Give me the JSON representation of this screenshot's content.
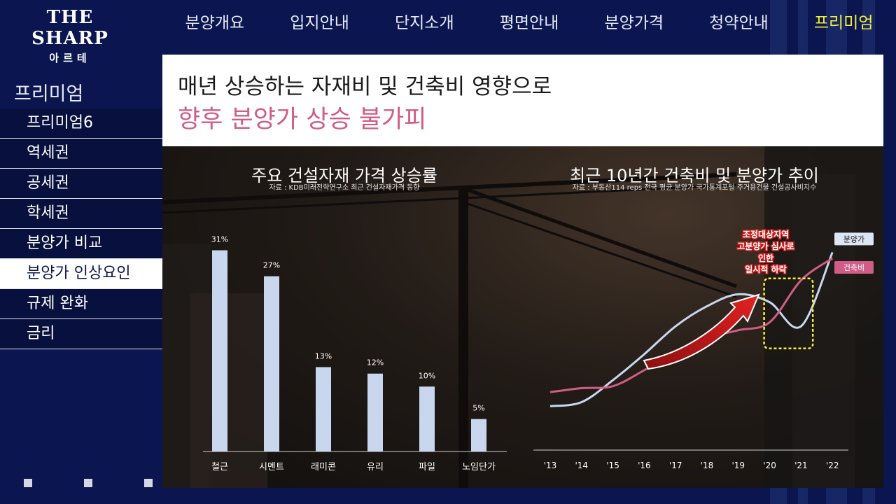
{
  "brand": {
    "name": "THE SHARP",
    "sub": "아르테"
  },
  "nav": [
    "분양개요",
    "입지안내",
    "단지소개",
    "평면안내",
    "분양가격",
    "청약안내",
    "프리미엄"
  ],
  "sidebar": {
    "title": "프리미엄",
    "items": [
      "프리미엄6",
      "역세권",
      "공세권",
      "학세권",
      "분양가 비교",
      "분양가 인상요인",
      "규제 완화",
      "금리"
    ]
  },
  "headline": {
    "line1": "매년 상승하는 자재비 및 건축비 영향으로",
    "line2": "향후 분양가 상승 불가피"
  },
  "left_panel": {
    "title": "주요 건설자재 가격 상승률",
    "source": "자료 : KDB미래전략연구소 최근 건설자재가격 동향"
  },
  "right_panel": {
    "title": "최근 10년간 건축비 및 분양가 추이",
    "source": "자료 : 부동산114 reps 전국 평균 분양가 국가통계포털 주거용건물 건설공사비지수",
    "note": [
      "조정대상지역",
      "고분양가 심사로",
      "인한",
      "일시적 하락"
    ]
  },
  "colors": {
    "bar": "#c9d7ee",
    "sale": "#c9d7ee",
    "cost": "#cf5d86",
    "highlight": "#f5ee3a",
    "arrow": "#d11c1c"
  },
  "chart_data": [
    {
      "type": "bar",
      "categories": [
        "철근",
        "시멘트",
        "래미콘",
        "유리",
        "파일",
        "노임단가"
      ],
      "values": [
        31,
        27,
        13,
        12,
        10,
        5
      ],
      "value_labels": [
        "31%",
        "27%",
        "13%",
        "12%",
        "10%",
        "5%"
      ],
      "title": "주요 건설자재 가격 상승률",
      "ylim": [
        0,
        33
      ]
    },
    {
      "type": "line",
      "x": [
        "'13",
        "'14",
        "'15",
        "'16",
        "'17",
        "'18",
        "'19",
        "'20",
        "'21",
        "'22"
      ],
      "title": "최근 10년간 건축비 및 분양가 추이",
      "series": [
        {
          "name": "분양가",
          "values": [
            22,
            24,
            35,
            48,
            62,
            72,
            78,
            74,
            62,
            99
          ]
        },
        {
          "name": "건축비",
          "values": [
            29,
            31,
            32,
            40,
            49,
            56,
            60,
            64,
            85,
            96
          ]
        }
      ],
      "ylim": [
        0,
        110
      ]
    }
  ]
}
